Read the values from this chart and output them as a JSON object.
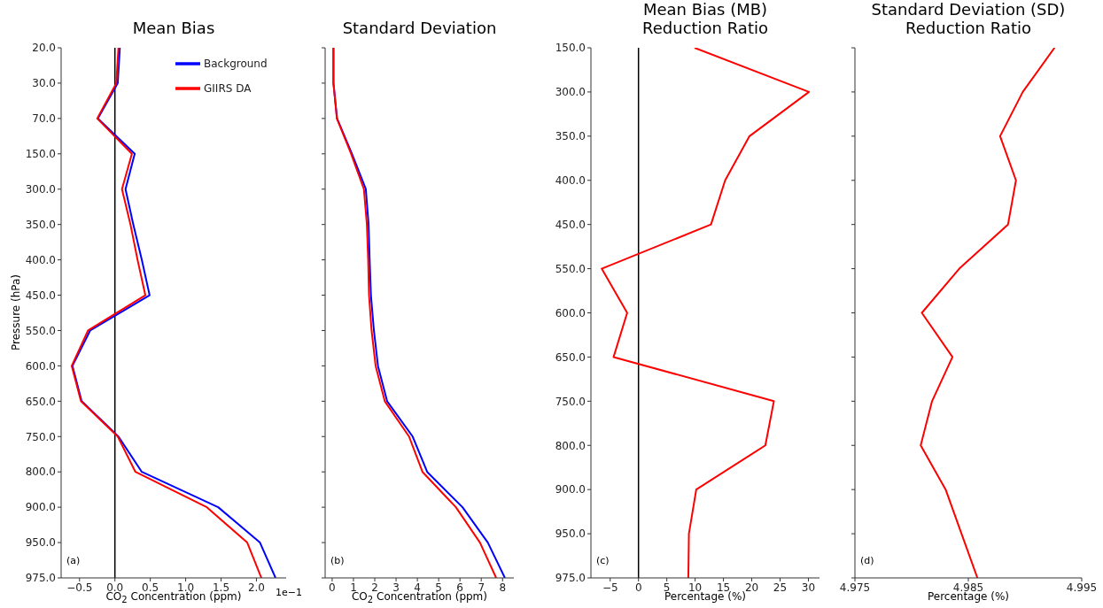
{
  "chart_data": [
    {
      "type": "line",
      "orientation": "horizontal",
      "title": "Mean Bias",
      "xlabel": "CO$_{2}$ Concentration (ppm)",
      "ylabel": "Pressure (hPa)",
      "categories": [
        "20.0",
        "30.0",
        "70.0",
        "150.0",
        "300.0",
        "350.0",
        "400.0",
        "450.0",
        "550.0",
        "600.0",
        "650.0",
        "750.0",
        "800.0",
        "900.0",
        "950.0",
        "975.0"
      ],
      "series": [
        {
          "name": "Background",
          "color": "#0000ff",
          "values": [
            0.07,
            0.04,
            -0.24,
            0.28,
            0.15,
            0.26,
            0.38,
            0.49,
            -0.35,
            -0.6,
            -0.47,
            0.05,
            0.38,
            1.46,
            2.05,
            2.27
          ]
        },
        {
          "name": "GIIRS DA",
          "color": "#ff0000",
          "values": [
            0.05,
            0.02,
            -0.25,
            0.24,
            0.1,
            0.22,
            0.32,
            0.43,
            -0.38,
            -0.61,
            -0.48,
            0.04,
            0.29,
            1.3,
            1.87,
            2.07
          ]
        }
      ],
      "xlim": [
        -0.76,
        2.42
      ],
      "xticks": [
        {
          "value": -0.5,
          "label": "−0.5"
        },
        {
          "value": 0,
          "label": "0.0"
        },
        {
          "value": 0.5,
          "label": "0.5"
        },
        {
          "value": 1,
          "label": "1.0"
        },
        {
          "value": 1.5,
          "label": "1.5"
        },
        {
          "value": 2,
          "label": "2.0"
        }
      ],
      "ref_lines": [
        {
          "axis": "x",
          "value": 0,
          "color": "#000000"
        }
      ],
      "legend": "top right",
      "grid": false,
      "annotations": [
        "(a)",
        "1e−1"
      ]
    },
    {
      "type": "line",
      "orientation": "horizontal",
      "title": "Standard Deviation",
      "xlabel": "CO$_{2}$ Concentration (ppm)",
      "categories": [
        "20.0",
        "30.0",
        "70.0",
        "150.0",
        "300.0",
        "350.0",
        "400.0",
        "450.0",
        "550.0",
        "600.0",
        "650.0",
        "750.0",
        "800.0",
        "900.0",
        "950.0",
        "975.0"
      ],
      "series": [
        {
          "color": "#0000ff",
          "values": [
            0.06,
            0.06,
            0.23,
            0.93,
            1.58,
            1.71,
            1.76,
            1.82,
            1.96,
            2.15,
            2.58,
            3.78,
            4.46,
            6.12,
            7.31,
            8.11
          ]
        },
        {
          "color": "#ff0000",
          "values": [
            0.06,
            0.06,
            0.22,
            0.89,
            1.49,
            1.63,
            1.69,
            1.73,
            1.85,
            2.04,
            2.47,
            3.61,
            4.24,
            5.81,
            6.94,
            7.7
          ]
        }
      ],
      "xlim": [
        -0.33,
        8.53
      ],
      "xticks": [
        0,
        1,
        2,
        3,
        4,
        5,
        6,
        7,
        8
      ],
      "tick_labels": "x",
      "grid": false,
      "annotations": [
        "(b)"
      ]
    },
    {
      "type": "line",
      "orientation": "horizontal",
      "title": "Mean Bias (MB)\nReduction Ratio",
      "xlabel": "Percentage (%)",
      "categories": [
        "150.0",
        "300.0",
        "350.0",
        "400.0",
        "450.0",
        "550.0",
        "600.0",
        "650.0",
        "750.0",
        "800.0",
        "900.0",
        "950.0",
        "975.0"
      ],
      "color": "#ff0000",
      "values": [
        9.9,
        30.1,
        19.6,
        15.3,
        12.8,
        -6.5,
        -2.0,
        -4.4,
        23.9,
        22.4,
        10.2,
        8.9,
        8.8
      ],
      "xlim": [
        -8.4,
        31.96
      ],
      "xticks": [
        {
          "value": -5,
          "label": "−5"
        },
        0,
        5,
        10,
        15,
        20,
        25,
        30
      ],
      "ref_lines": [
        {
          "axis": "x",
          "value": 0,
          "color": "#000000"
        }
      ],
      "grid": false,
      "annotations": [
        "(c)"
      ]
    },
    {
      "type": "line",
      "orientation": "horizontal",
      "title": "Standard Deviation (SD)\nReduction Ratio",
      "xlabel": "Percentage (%)",
      "categories": [
        "150.0",
        "300.0",
        "350.0",
        "400.0",
        "450.0",
        "550.0",
        "600.0",
        "650.0",
        "750.0",
        "800.0",
        "900.0",
        "950.0",
        "975.0"
      ],
      "color": "#ff0000",
      "values": [
        4.9926,
        4.9898,
        4.9878,
        4.9892,
        4.9885,
        4.9842,
        4.9809,
        4.9836,
        4.9818,
        4.9808,
        4.983,
        4.9844,
        4.9858
      ],
      "xlim": [
        4.975,
        4.995
      ],
      "xticks": [
        4.975,
        4.985,
        4.995
      ],
      "tick_labels": "x",
      "grid": false,
      "annotations": [
        "(d)"
      ]
    }
  ]
}
